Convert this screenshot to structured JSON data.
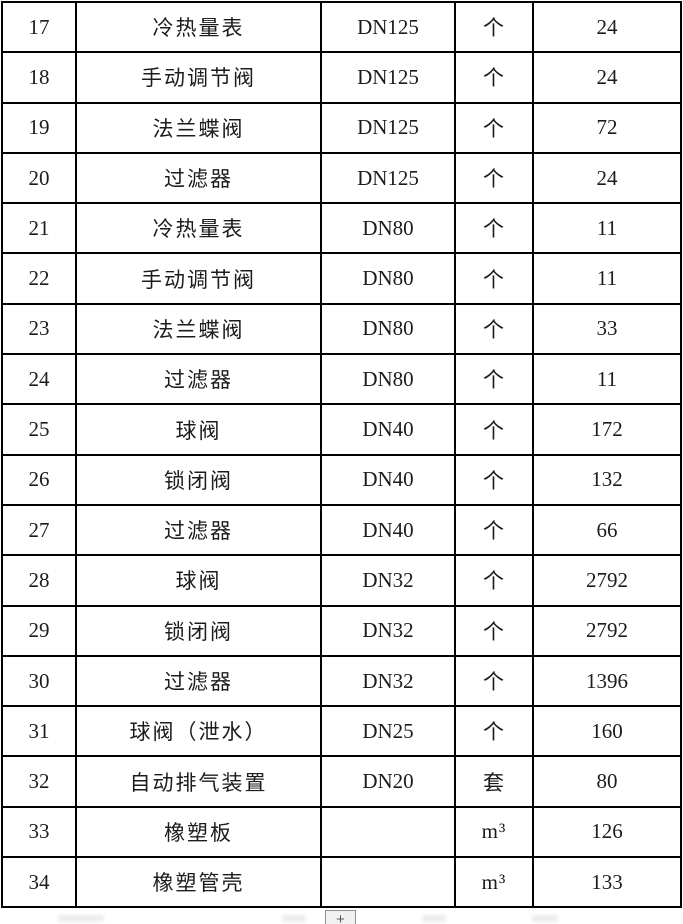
{
  "table": {
    "rows": [
      {
        "no": "17",
        "name": "冷热量表",
        "spec": "DN125",
        "unit": "个",
        "qty": "24"
      },
      {
        "no": "18",
        "name": "手动调节阀",
        "spec": "DN125",
        "unit": "个",
        "qty": "24"
      },
      {
        "no": "19",
        "name": "法兰蝶阀",
        "spec": "DN125",
        "unit": "个",
        "qty": "72"
      },
      {
        "no": "20",
        "name": "过滤器",
        "spec": "DN125",
        "unit": "个",
        "qty": "24"
      },
      {
        "no": "21",
        "name": "冷热量表",
        "spec": "DN80",
        "unit": "个",
        "qty": "11"
      },
      {
        "no": "22",
        "name": "手动调节阀",
        "spec": "DN80",
        "unit": "个",
        "qty": "11"
      },
      {
        "no": "23",
        "name": "法兰蝶阀",
        "spec": "DN80",
        "unit": "个",
        "qty": "33"
      },
      {
        "no": "24",
        "name": "过滤器",
        "spec": "DN80",
        "unit": "个",
        "qty": "11"
      },
      {
        "no": "25",
        "name": "球阀",
        "spec": "DN40",
        "unit": "个",
        "qty": "172"
      },
      {
        "no": "26",
        "name": "锁闭阀",
        "spec": "DN40",
        "unit": "个",
        "qty": "132"
      },
      {
        "no": "27",
        "name": "过滤器",
        "spec": "DN40",
        "unit": "个",
        "qty": "66"
      },
      {
        "no": "28",
        "name": "球阀",
        "spec": "DN32",
        "unit": "个",
        "qty": "2792"
      },
      {
        "no": "29",
        "name": "锁闭阀",
        "spec": "DN32",
        "unit": "个",
        "qty": "2792"
      },
      {
        "no": "30",
        "name": "过滤器",
        "spec": "DN32",
        "unit": "个",
        "qty": "1396"
      },
      {
        "no": "31",
        "name": "球阀（泄水）",
        "spec": "DN25",
        "unit": "个",
        "qty": "160"
      },
      {
        "no": "32",
        "name": "自动排气装置",
        "spec": "DN20",
        "unit": "套",
        "qty": "80"
      },
      {
        "no": "33",
        "name": "橡塑板",
        "spec": "",
        "unit": "m³",
        "qty": "126"
      },
      {
        "no": "34",
        "name": "橡塑管壳",
        "spec": "",
        "unit": "m³",
        "qty": "133"
      }
    ]
  },
  "add_row_button": {
    "label": "+"
  },
  "colors": {
    "border": "#000000",
    "text": "#1c1c1c",
    "button_bg": "#f1f1f1",
    "button_border": "#929292",
    "button_text": "#5a5a5a"
  }
}
